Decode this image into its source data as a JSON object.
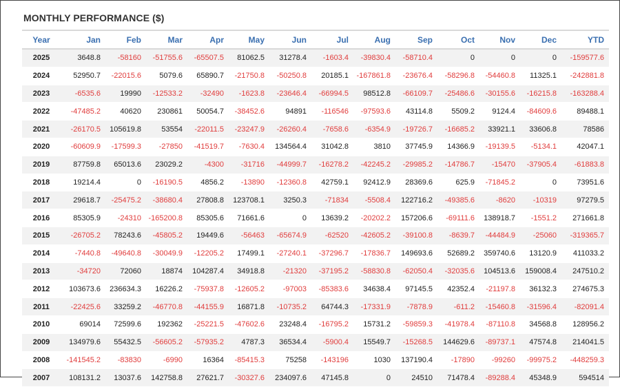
{
  "title": "MONTHLY PERFORMANCE ($)",
  "colors": {
    "header": "#3a6fb0",
    "negative": "#e03c3c",
    "positive": "#222222",
    "stripe": "#f2f2f2"
  },
  "chart_data": {
    "type": "table",
    "title": "MONTHLY PERFORMANCE ($)",
    "columns": [
      "Year",
      "Jan",
      "Feb",
      "Mar",
      "Apr",
      "May",
      "Jun",
      "Jul",
      "Aug",
      "Sep",
      "Oct",
      "Nov",
      "Dec",
      "YTD"
    ],
    "rows": [
      [
        "2025",
        "3648.8",
        "-58160",
        "-51755.6",
        "-65507.5",
        "81062.5",
        "31278.4",
        "-1603.4",
        "-39830.4",
        "-58710.4",
        "0",
        "0",
        "0",
        "-159577.6"
      ],
      [
        "2024",
        "52950.7",
        "-22015.6",
        "5079.6",
        "65890.7",
        "-21750.8",
        "-50250.8",
        "20185.1",
        "-167861.8",
        "-23676.4",
        "-58296.8",
        "-54460.8",
        "11325.1",
        "-242881.8"
      ],
      [
        "2023",
        "-6535.6",
        "19990",
        "-12533.2",
        "-32490",
        "-1623.8",
        "-23646.4",
        "-66994.5",
        "98512.8",
        "-66109.7",
        "-25486.6",
        "-30155.6",
        "-16215.8",
        "-163288.4"
      ],
      [
        "2022",
        "-47485.2",
        "40620",
        "230861",
        "50054.7",
        "-38452.6",
        "94891",
        "-116546",
        "-97593.6",
        "43114.8",
        "5509.2",
        "9124.4",
        "-84609.6",
        "89488.1"
      ],
      [
        "2021",
        "-26170.5",
        "105619.8",
        "53554",
        "-22011.5",
        "-23247.9",
        "-26260.4",
        "-7658.6",
        "-6354.9",
        "-19726.7",
        "-16685.2",
        "33921.1",
        "33606.8",
        "78586"
      ],
      [
        "2020",
        "-60609.9",
        "-17599.3",
        "-27850",
        "-41519.7",
        "-7630.4",
        "134564.4",
        "31042.8",
        "3810",
        "37745.9",
        "14366.9",
        "-19139.5",
        "-5134.1",
        "42047.1"
      ],
      [
        "2019",
        "87759.8",
        "65013.6",
        "23029.2",
        "-4300",
        "-31716",
        "-44999.7",
        "-16278.2",
        "-42245.2",
        "-29985.2",
        "-14786.7",
        "-15470",
        "-37905.4",
        "-61883.8"
      ],
      [
        "2018",
        "19214.4",
        "0",
        "-16190.5",
        "4856.2",
        "-13890",
        "-12360.8",
        "42759.1",
        "92412.9",
        "28369.6",
        "625.9",
        "-71845.2",
        "0",
        "73951.6"
      ],
      [
        "2017",
        "29618.7",
        "-25475.2",
        "-38680.4",
        "27808.8",
        "123708.1",
        "3250.3",
        "-71834",
        "-5508.4",
        "122716.2",
        "-49385.6",
        "-8620",
        "-10319",
        "97279.5"
      ],
      [
        "2016",
        "85305.9",
        "-24310",
        "-165200.8",
        "85305.6",
        "71661.6",
        "0",
        "13639.2",
        "-20202.2",
        "157206.6",
        "-69111.6",
        "138918.7",
        "-1551.2",
        "271661.8"
      ],
      [
        "2015",
        "-26705.2",
        "78243.6",
        "-45805.2",
        "19449.6",
        "-56463",
        "-65674.9",
        "-62520",
        "-42605.2",
        "-39100.8",
        "-8639.7",
        "-44484.9",
        "-25060",
        "-319365.7"
      ],
      [
        "2014",
        "-7440.8",
        "-49640.8",
        "-30049.9",
        "-12205.2",
        "17499.1",
        "-27240.1",
        "-37296.7",
        "-17836.7",
        "149693.6",
        "52689.2",
        "359740.6",
        "13120.9",
        "411033.2"
      ],
      [
        "2013",
        "-34720",
        "72060",
        "18874",
        "104287.4",
        "34918.8",
        "-21320",
        "-37195.2",
        "-58830.8",
        "-62050.4",
        "-32035.6",
        "104513.6",
        "159008.4",
        "247510.2"
      ],
      [
        "2012",
        "103673.6",
        "236634.3",
        "16226.2",
        "-75937.8",
        "-12605.2",
        "-97003",
        "-85383.6",
        "34638.4",
        "97145.5",
        "42352.4",
        "-21197.8",
        "36132.3",
        "274675.3"
      ],
      [
        "2011",
        "-22425.6",
        "33259.2",
        "-46770.8",
        "-44155.9",
        "16871.8",
        "-10735.2",
        "64744.3",
        "-17331.9",
        "-7878.9",
        "-611.2",
        "-15460.8",
        "-31596.4",
        "-82091.4"
      ],
      [
        "2010",
        "69014",
        "72599.6",
        "192362",
        "-25221.5",
        "-47602.6",
        "23248.4",
        "-16795.2",
        "15731.2",
        "-59859.3",
        "-41978.4",
        "-87110.8",
        "34568.8",
        "128956.2"
      ],
      [
        "2009",
        "134979.6",
        "55432.5",
        "-56605.2",
        "-57935.2",
        "4787.3",
        "36534.4",
        "-5900.4",
        "15549.7",
        "-15268.5",
        "144629.6",
        "-89737.1",
        "47574.8",
        "214041.5"
      ],
      [
        "2008",
        "-141545.2",
        "-83830",
        "-6990",
        "16364",
        "-85415.3",
        "75258",
        "-143196",
        "1030",
        "137190.4",
        "-17890",
        "-99260",
        "-99975.2",
        "-448259.3"
      ],
      [
        "2007",
        "108131.2",
        "13037.6",
        "142758.8",
        "27621.7",
        "-30327.6",
        "234097.6",
        "47145.8",
        "0",
        "24510",
        "71478.4",
        "-89288.4",
        "45348.9",
        "594514"
      ]
    ]
  }
}
